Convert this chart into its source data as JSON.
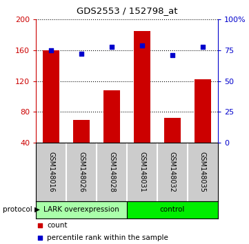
{
  "title": "GDS2553 / 152798_at",
  "samples": [
    "GSM148016",
    "GSM148026",
    "GSM148028",
    "GSM148031",
    "GSM148032",
    "GSM148035"
  ],
  "counts": [
    160,
    70,
    108,
    185,
    72,
    122
  ],
  "percentile_ranks": [
    75,
    72,
    78,
    79,
    71,
    78
  ],
  "left_ylim": [
    40,
    200
  ],
  "left_yticks": [
    40,
    80,
    120,
    160,
    200
  ],
  "right_ylim": [
    0,
    100
  ],
  "right_yticks": [
    0,
    25,
    50,
    75,
    100
  ],
  "right_yticklabels": [
    "0",
    "25",
    "50",
    "75",
    "100%"
  ],
  "bar_color": "#cc0000",
  "scatter_color": "#0000cc",
  "left_axis_color": "#cc0000",
  "right_axis_color": "#0000cc",
  "protocol_groups": [
    {
      "label": "LARK overexpression",
      "start": 0,
      "end": 3,
      "color": "#aaffaa"
    },
    {
      "label": "control",
      "start": 3,
      "end": 6,
      "color": "#00ee00"
    }
  ],
  "protocol_label": "protocol",
  "legend_count_label": "count",
  "legend_percentile_label": "percentile rank within the sample",
  "background_color": "#ffffff",
  "label_area_color": "#cccccc",
  "bar_width": 0.55
}
